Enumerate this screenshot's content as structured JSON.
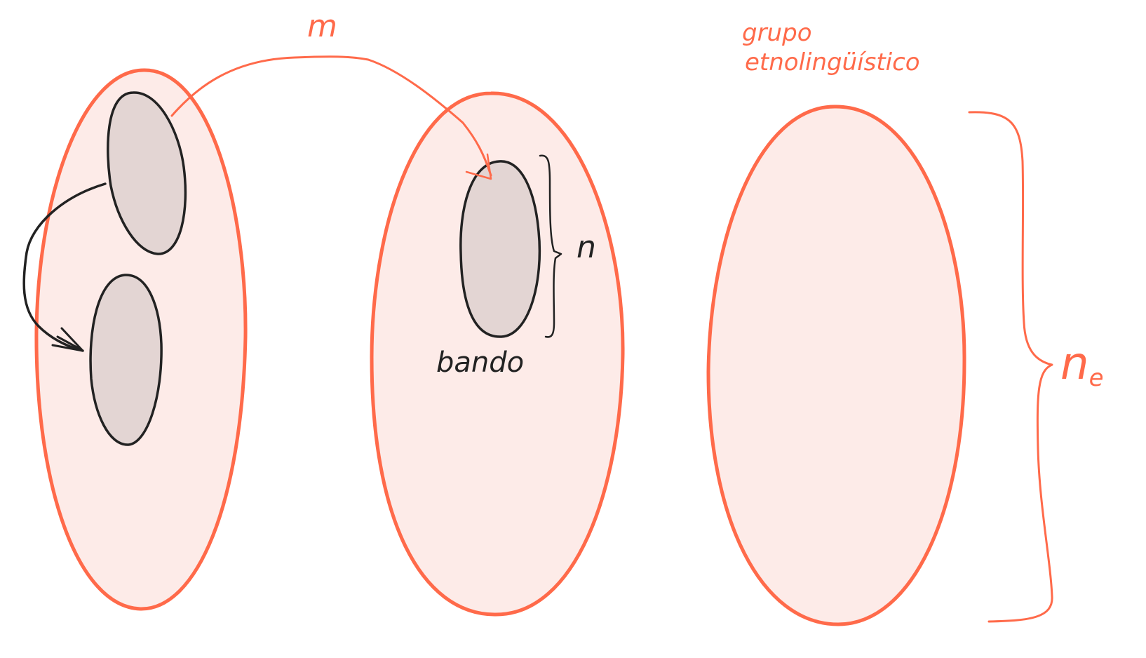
{
  "colors": {
    "group_stroke": "#FF6A4A",
    "group_fill": "#FDEBE8",
    "band_stroke": "#222222",
    "band_fill": "#E3D5D3",
    "arrow_dark": "#222222",
    "label_orange": "#FF6A4A",
    "label_dark": "#222222"
  },
  "labels": {
    "migration_m": "m",
    "band_size_n": "n",
    "band_label": "bando",
    "group_label_line1": "grupo",
    "group_label_line2": "etnolingüístico",
    "group_size_symbol": "n",
    "group_size_subscript": "e"
  },
  "icons": {
    "migration_arrow": "curved-arrow-right",
    "fission_arrow": "curved-arrow-down",
    "band_brace": "right-curly-brace",
    "group_brace": "right-curly-brace"
  }
}
